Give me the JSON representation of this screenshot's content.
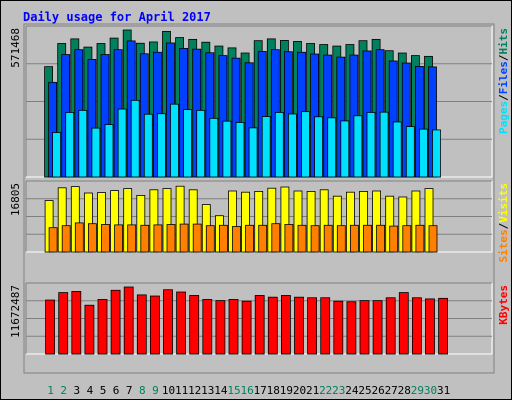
{
  "chart_data": {
    "type": "bar",
    "title": "Daily usage for April 2017",
    "categories": [
      "1",
      "2",
      "3",
      "4",
      "5",
      "6",
      "7",
      "8",
      "9",
      "10",
      "11",
      "12",
      "13",
      "14",
      "15",
      "16",
      "17",
      "18",
      "19",
      "20",
      "21",
      "22",
      "23",
      "24",
      "25",
      "26",
      "27",
      "28",
      "29",
      "30",
      "31"
    ],
    "weekend_days": [
      1,
      2,
      8,
      9,
      15,
      16,
      22,
      23,
      29,
      30
    ],
    "panels": [
      {
        "name": "hits-files-pages",
        "max_label": "571468",
        "ymax": 571468,
        "right_labels": [
          "Pages",
          "Files",
          "Hits"
        ],
        "series": [
          {
            "name": "Hits",
            "color": "#00805c",
            "values": [
              429000,
              519000,
              537000,
              505000,
              519000,
              540000,
              571468,
              520000,
              525000,
              566000,
              542000,
              535000,
              524000,
              509000,
              502000,
              482000,
              530000,
              537000,
              531000,
              527000,
              519000,
              515000,
              509000,
              515000,
              530000,
              535000,
              491000,
              482000,
              472000,
              469000,
              0
            ]
          },
          {
            "name": "Files",
            "color": "#0040ff",
            "values": [
              368000,
              476000,
              495000,
              457000,
              476000,
              495000,
              529000,
              479000,
              485000,
              521000,
              500000,
              497000,
              483000,
              472000,
              462000,
              444000,
              488000,
              495000,
              487000,
              485000,
              478000,
              474000,
              466000,
              474000,
              490000,
              495000,
              451000,
              443000,
              430000,
              428000,
              0
            ]
          },
          {
            "name": "Pages",
            "color": "#00e0ff",
            "values": [
              173000,
              251000,
              259000,
              190000,
              204000,
              264000,
              298000,
              244000,
              246000,
              283000,
              262000,
              259000,
              228000,
              217000,
              212000,
              191000,
              235000,
              251000,
              245000,
              254000,
              234000,
              230000,
              218000,
              238000,
              251000,
              252000,
              214000,
              196000,
              186000,
              183000,
              0
            ]
          }
        ]
      },
      {
        "name": "visits-sites",
        "max_label": "16805",
        "ymax": 16805,
        "right_labels": [
          "Sites",
          "Visits"
        ],
        "series": [
          {
            "name": "Visits",
            "color": "#ffff00",
            "values": [
              12900,
              16100,
              16400,
              14800,
              14900,
              15400,
              15900,
              14200,
              15600,
              15900,
              16500,
              15600,
              11900,
              9100,
              15300,
              15000,
              15200,
              16000,
              16300,
              15300,
              15200,
              15600,
              14000,
              15000,
              15200,
              15300,
              14000,
              13800,
              15300,
              15900,
              0
            ]
          },
          {
            "name": "Sites",
            "color": "#ff8000",
            "values": [
              6100,
              6600,
              7300,
              7100,
              6900,
              6800,
              6800,
              6700,
              6800,
              6900,
              7000,
              7000,
              6600,
              6700,
              6400,
              6700,
              6700,
              7100,
              6900,
              6700,
              6600,
              6700,
              6600,
              6700,
              6700,
              6700,
              6500,
              6600,
              6700,
              6600,
              0
            ]
          }
        ]
      },
      {
        "name": "kbytes",
        "max_label": "11672487",
        "ymax": 11672487,
        "right_labels": [
          "KBytes"
        ],
        "series": [
          {
            "name": "KBytes",
            "color": "#ff0000",
            "values": [
              9400000,
              10700000,
              10900000,
              8500000,
              9500000,
              11100000,
              11672487,
              10300000,
              10100000,
              11200000,
              10800000,
              10200000,
              9500000,
              9300000,
              9500000,
              9200000,
              10200000,
              9900000,
              10200000,
              9900000,
              9800000,
              9800000,
              9200000,
              9100000,
              9300000,
              9300000,
              9800000,
              10700000,
              9800000,
              9600000,
              9700000
            ]
          }
        ]
      }
    ]
  }
}
